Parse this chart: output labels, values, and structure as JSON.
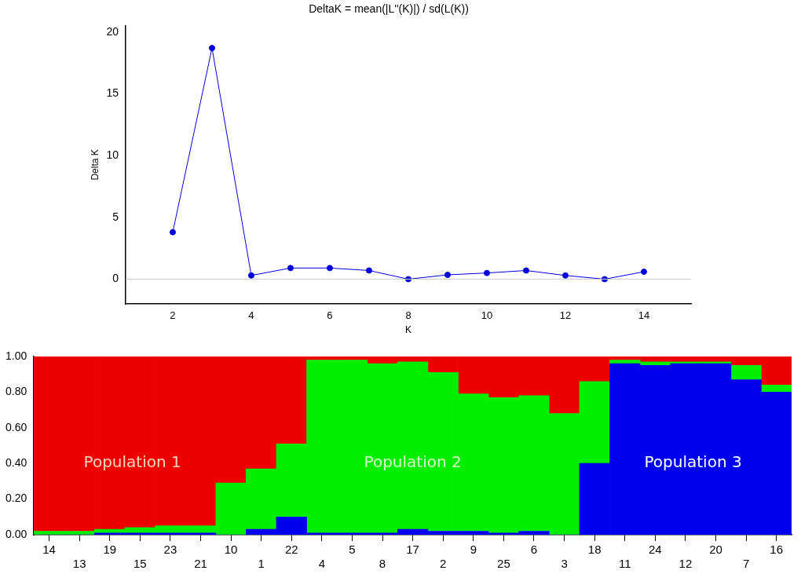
{
  "chart_data": [
    {
      "type": "line",
      "title": "DeltaK = mean(|L''(K)|) / sd(L(K))",
      "xlabel": "K",
      "ylabel": "Delta K",
      "x": [
        2,
        3,
        4,
        5,
        6,
        7,
        8,
        9,
        10,
        11,
        12,
        13,
        14
      ],
      "series": [
        {
          "color": "#0000dd",
          "values": [
            3.8,
            18.7,
            0.3,
            0.9,
            0.9,
            0.7,
            0.0,
            0.35,
            0.5,
            0.7,
            0.3,
            0.0,
            0.6
          ]
        }
      ],
      "marker": "circle",
      "xlim": [
        0.8,
        15.2
      ],
      "xticks": [
        2,
        4,
        6,
        8,
        10,
        12,
        14
      ],
      "ylim": [
        -2,
        20.5
      ],
      "yticks": [
        0,
        5,
        10,
        15,
        20
      ],
      "ref_lines": [
        {
          "axis": "y",
          "value": 0,
          "color": "#cccccc"
        }
      ]
    },
    {
      "type": "bar",
      "stacked": true,
      "categories": [
        "14",
        "13",
        "19",
        "15",
        "23",
        "21",
        "10",
        "1",
        "22",
        "4",
        "5",
        "8",
        "17",
        "2",
        "9",
        "25",
        "6",
        "3",
        "18",
        "11",
        "24",
        "12",
        "20",
        "7",
        "16"
      ],
      "series": [
        {
          "color": "#0000ee",
          "values": [
            0.0,
            0.0,
            0.01,
            0.01,
            0.01,
            0.01,
            0.0,
            0.03,
            0.1,
            0.01,
            0.01,
            0.01,
            0.03,
            0.02,
            0.02,
            0.01,
            0.02,
            0.0,
            0.4,
            0.96,
            0.95,
            0.96,
            0.96,
            0.87,
            0.8
          ]
        },
        {
          "color": "#00ee00",
          "values": [
            0.02,
            0.02,
            0.02,
            0.03,
            0.04,
            0.04,
            0.29,
            0.34,
            0.41,
            0.97,
            0.97,
            0.95,
            0.94,
            0.89,
            0.77,
            0.76,
            0.76,
            0.68,
            0.46,
            0.02,
            0.02,
            0.01,
            0.01,
            0.08,
            0.04
          ]
        },
        {
          "color": "#ee0000",
          "values": [
            0.98,
            0.98,
            0.97,
            0.96,
            0.95,
            0.95,
            0.71,
            0.63,
            0.49,
            0.02,
            0.02,
            0.04,
            0.03,
            0.09,
            0.21,
            0.23,
            0.22,
            0.32,
            0.14,
            0.02,
            0.03,
            0.03,
            0.03,
            0.05,
            0.16
          ]
        }
      ],
      "ylim": [
        0,
        1
      ],
      "yticks": [
        {
          "value": 0,
          "label": "0.00"
        },
        {
          "value": 0.2,
          "label": "0.20"
        },
        {
          "value": 0.4,
          "label": "0.40"
        },
        {
          "value": 0.6,
          "label": "0.60"
        },
        {
          "value": 0.8,
          "label": "0.80"
        },
        {
          "value": 1,
          "label": "1.00"
        }
      ],
      "annotations": [
        "Population 1",
        "Population 2",
        "Population 3"
      ]
    }
  ]
}
